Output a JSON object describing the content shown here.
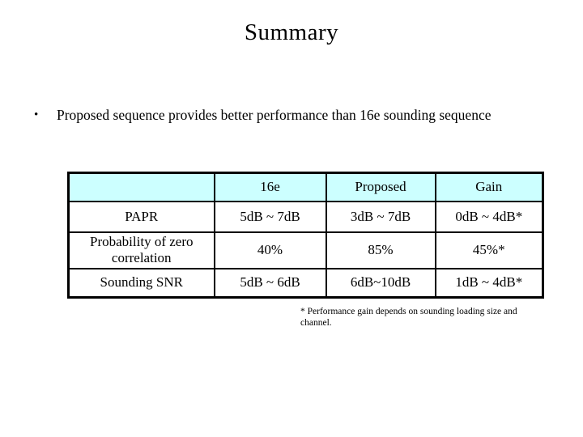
{
  "slide": {
    "title": "Summary",
    "bullet": {
      "marker": "•",
      "text": "Proposed sequence provides better performance than 16e sounding sequence"
    },
    "table": {
      "header_bg": "#CCFFFF",
      "border_color": "#000000",
      "columns": [
        "",
        "16e",
        "Proposed",
        "Gain"
      ],
      "rows": [
        {
          "label": "PAPR",
          "values": [
            "5dB ~ 7dB",
            "3dB ~ 7dB",
            "0dB ~ 4dB*"
          ]
        },
        {
          "label": "Probability of zero correlation",
          "values": [
            "40%",
            "85%",
            "45%*"
          ]
        },
        {
          "label": "Sounding SNR",
          "values": [
            "5dB ~ 6dB",
            "6dB~10dB",
            "1dB ~ 4dB*"
          ]
        }
      ]
    },
    "footnote": "* Performance gain depends on sounding loading size and channel."
  }
}
